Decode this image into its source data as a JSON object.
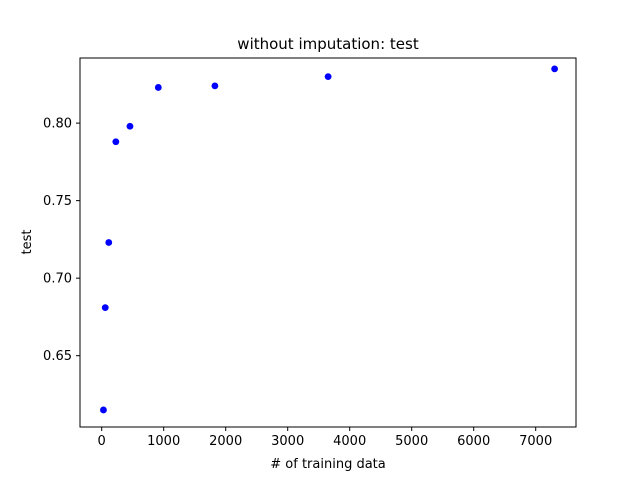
{
  "chart_data": {
    "type": "scatter",
    "title": "without imputation: test",
    "xlabel": "# of training data",
    "ylabel": "test",
    "xlim": [
      -350,
      7650
    ],
    "ylim": [
      0.604,
      0.842
    ],
    "x_ticks": [
      0,
      1000,
      2000,
      3000,
      4000,
      5000,
      6000,
      7000
    ],
    "y_ticks": [
      0.65,
      0.7,
      0.75,
      0.8
    ],
    "x_tick_labels": [
      "0",
      "1000",
      "2000",
      "3000",
      "4000",
      "5000",
      "6000",
      "7000"
    ],
    "y_tick_labels": [
      "0.65",
      "0.70",
      "0.75",
      "0.80"
    ],
    "grid": false,
    "legend": "none",
    "color": "#0000ff",
    "series": [
      {
        "x": [
          28,
          57,
          114,
          228,
          456,
          913,
          1826,
          3652,
          7305
        ],
        "y": [
          0.615,
          0.681,
          0.723,
          0.788,
          0.798,
          0.823,
          0.824,
          0.83,
          0.835
        ]
      }
    ]
  }
}
